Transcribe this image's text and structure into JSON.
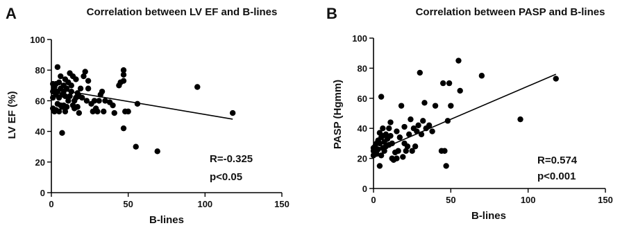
{
  "chart_data": [
    {
      "type": "scatter",
      "panel_label": "A",
      "title": "Correlation between LV EF and B-lines",
      "xlabel": "B-lines",
      "ylabel": "LV EF (%)",
      "xlim": [
        0,
        150
      ],
      "ylim": [
        0,
        100
      ],
      "xticks": [
        0,
        50,
        100,
        150
      ],
      "yticks": [
        0,
        20,
        40,
        60,
        80,
        100
      ],
      "grid": false,
      "annotation": {
        "r": "R=-0.325",
        "p": "p<0.05"
      },
      "trendline": {
        "x": [
          0,
          118
        ],
        "y": [
          68,
          48
        ]
      },
      "points": [
        [
          1,
          55
        ],
        [
          1,
          62
        ],
        [
          1,
          66
        ],
        [
          1,
          71
        ],
        [
          2,
          53
        ],
        [
          2,
          67
        ],
        [
          2,
          69
        ],
        [
          3,
          54
        ],
        [
          3,
          64
        ],
        [
          3,
          71
        ],
        [
          4,
          58
        ],
        [
          4,
          66
        ],
        [
          4,
          82
        ],
        [
          5,
          53
        ],
        [
          5,
          62
        ],
        [
          5,
          72
        ],
        [
          6,
          57
        ],
        [
          6,
          68
        ],
        [
          6,
          76
        ],
        [
          7,
          39
        ],
        [
          7,
          56
        ],
        [
          7,
          64
        ],
        [
          8,
          57
        ],
        [
          8,
          66
        ],
        [
          8,
          70
        ],
        [
          9,
          53
        ],
        [
          9,
          63
        ],
        [
          9,
          74
        ],
        [
          10,
          56
        ],
        [
          10,
          68
        ],
        [
          11,
          60
        ],
        [
          11,
          72
        ],
        [
          12,
          63
        ],
        [
          12,
          78
        ],
        [
          13,
          66
        ],
        [
          13,
          70
        ],
        [
          14,
          57
        ],
        [
          14,
          76
        ],
        [
          15,
          55
        ],
        [
          15,
          60
        ],
        [
          16,
          62
        ],
        [
          16,
          74
        ],
        [
          17,
          65
        ],
        [
          17,
          56
        ],
        [
          18,
          52
        ],
        [
          18,
          63
        ],
        [
          19,
          68
        ],
        [
          20,
          62
        ],
        [
          21,
          76
        ],
        [
          22,
          79
        ],
        [
          23,
          60
        ],
        [
          24,
          73
        ],
        [
          24,
          68
        ],
        [
          26,
          58
        ],
        [
          27,
          53
        ],
        [
          28,
          60
        ],
        [
          29,
          55
        ],
        [
          30,
          53
        ],
        [
          31,
          60
        ],
        [
          32,
          64
        ],
        [
          33,
          66
        ],
        [
          34,
          53
        ],
        [
          35,
          60
        ],
        [
          38,
          59
        ],
        [
          40,
          57
        ],
        [
          41,
          52
        ],
        [
          44,
          70
        ],
        [
          45,
          72
        ],
        [
          47,
          42
        ],
        [
          47,
          73
        ],
        [
          47,
          77
        ],
        [
          47,
          80
        ],
        [
          48,
          53
        ],
        [
          50,
          53
        ],
        [
          55,
          30
        ],
        [
          56,
          58
        ],
        [
          69,
          27
        ],
        [
          95,
          69
        ],
        [
          118,
          52
        ]
      ]
    },
    {
      "type": "scatter",
      "panel_label": "B",
      "title": "Correlation between PASP and B-lines",
      "xlabel": "B-lines",
      "ylabel": "PASP (Hgmm)",
      "xlim": [
        0,
        150
      ],
      "ylim": [
        0,
        100
      ],
      "xticks": [
        0,
        50,
        100,
        150
      ],
      "yticks": [
        0,
        20,
        40,
        60,
        80,
        100
      ],
      "grid": false,
      "annotation": {
        "r": "R=0.574",
        "p": "p<0.001"
      },
      "trendline": {
        "x": [
          0,
          118
        ],
        "y": [
          24,
          76
        ]
      },
      "points": [
        [
          0,
          22
        ],
        [
          0,
          25
        ],
        [
          0,
          27
        ],
        [
          1,
          24
        ],
        [
          1,
          28
        ],
        [
          2,
          23
        ],
        [
          2,
          30
        ],
        [
          3,
          26
        ],
        [
          3,
          32
        ],
        [
          4,
          15
        ],
        [
          4,
          30
        ],
        [
          4,
          37
        ],
        [
          5,
          22
        ],
        [
          5,
          34
        ],
        [
          5,
          61
        ],
        [
          6,
          27
        ],
        [
          6,
          35
        ],
        [
          6,
          40
        ],
        [
          7,
          25
        ],
        [
          7,
          31
        ],
        [
          8,
          28
        ],
        [
          8,
          36
        ],
        [
          9,
          33
        ],
        [
          10,
          29
        ],
        [
          10,
          40
        ],
        [
          11,
          35
        ],
        [
          11,
          44
        ],
        [
          12,
          20
        ],
        [
          12,
          30
        ],
        [
          13,
          19
        ],
        [
          14,
          24
        ],
        [
          15,
          38
        ],
        [
          15,
          20
        ],
        [
          16,
          25
        ],
        [
          17,
          34
        ],
        [
          18,
          55
        ],
        [
          19,
          21
        ],
        [
          20,
          30
        ],
        [
          20,
          41
        ],
        [
          21,
          25
        ],
        [
          22,
          28
        ],
        [
          23,
          36
        ],
        [
          24,
          46
        ],
        [
          25,
          25
        ],
        [
          26,
          40
        ],
        [
          27,
          28
        ],
        [
          28,
          38
        ],
        [
          29,
          42
        ],
        [
          30,
          77
        ],
        [
          31,
          36
        ],
        [
          32,
          45
        ],
        [
          33,
          57
        ],
        [
          34,
          40
        ],
        [
          36,
          42
        ],
        [
          38,
          38
        ],
        [
          40,
          55
        ],
        [
          44,
          25
        ],
        [
          45,
          70
        ],
        [
          46,
          25
        ],
        [
          47,
          15
        ],
        [
          48,
          45
        ],
        [
          49,
          70
        ],
        [
          50,
          55
        ],
        [
          55,
          85
        ],
        [
          56,
          65
        ],
        [
          70,
          75
        ],
        [
          95,
          46
        ],
        [
          118,
          73
        ]
      ]
    }
  ]
}
